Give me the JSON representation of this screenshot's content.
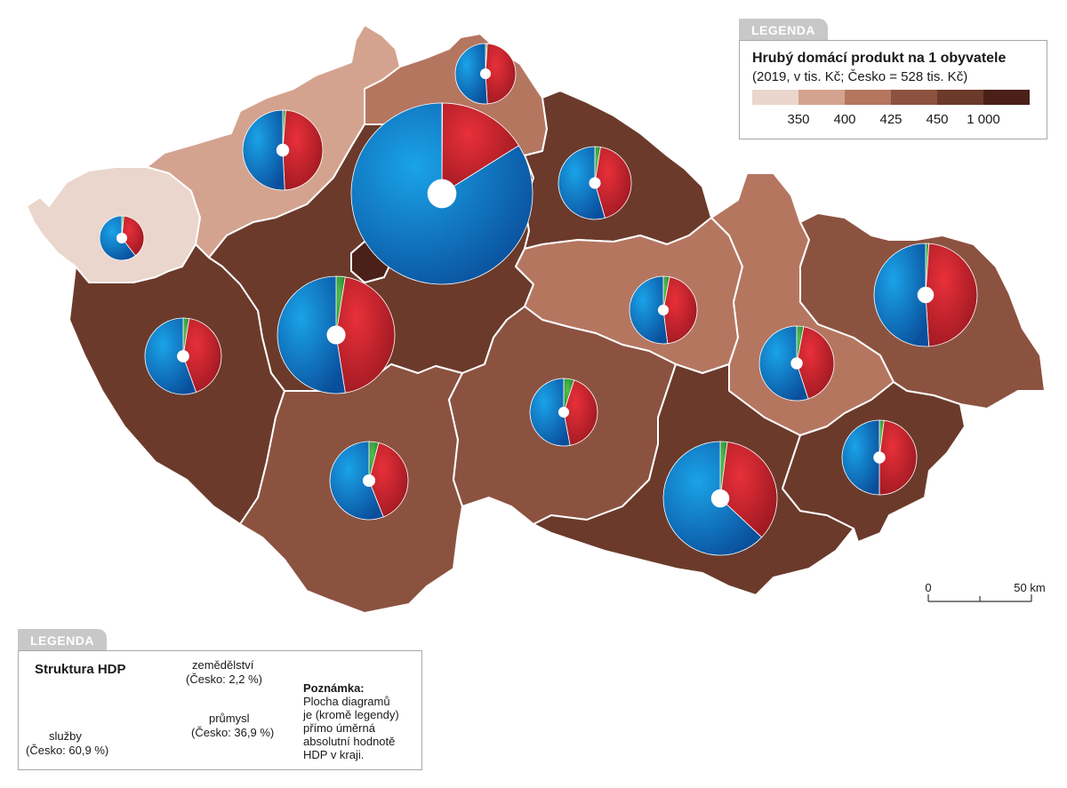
{
  "legend_top": {
    "tab": "LEGENDA",
    "title": "Hrubý domácí produkt na 1 obyvatele",
    "subtitle": "(2019, v tis. Kč; Česko = 528 tis. Kč)",
    "classes": [
      {
        "color": "#ead6cc"
      },
      {
        "color": "#d4a38f"
      },
      {
        "color": "#b57660"
      },
      {
        "color": "#8c5240"
      },
      {
        "color": "#6b3a2b"
      },
      {
        "color": "#4a2018"
      }
    ],
    "breaks": [
      "350",
      "400",
      "425",
      "450",
      "1 000"
    ]
  },
  "legend_bottom": {
    "tab": "LEGENDA",
    "title": "Struktura HDP",
    "agri_label": "zemědělství",
    "agri_value": "(Česko: 2,2 %)",
    "ind_label": "průmysl",
    "ind_value": "(Česko: 36,9 %)",
    "serv_label": "služby",
    "serv_value": "(Česko: 60,9 %)",
    "sample_shares": {
      "agriculture": 2.2,
      "industry": 36.9,
      "services": 60.9
    },
    "note_title": "Poznámka:",
    "note_lines": [
      "Plocha diagramů",
      "je (kromě legendy)",
      "přímo úměrná",
      "absolutní hodnotě",
      "HDP v kraji."
    ]
  },
  "scale": {
    "zero": "0",
    "end": "50 km"
  },
  "pie_colors": {
    "agriculture": "#2e9e44",
    "industry": "#c4202b",
    "services": "#0a68b4"
  },
  "regions": [
    {
      "name": "karlovarsky",
      "cls": 0,
      "shares": {
        "agriculture": 1.5,
        "industry": 38,
        "services": 60.5
      }
    },
    {
      "name": "ustecky",
      "cls": 1,
      "shares": {
        "agriculture": 1.2,
        "industry": 48,
        "services": 50.8
      }
    },
    {
      "name": "liberecky",
      "cls": 2,
      "shares": {
        "agriculture": 1,
        "industry": 48,
        "services": 51
      }
    },
    {
      "name": "praha",
      "cls": 5,
      "shares": {
        "agriculture": 0.1,
        "industry": 16,
        "services": 83.9
      }
    },
    {
      "name": "stredocesky",
      "cls": 4,
      "shares": {
        "agriculture": 2.5,
        "industry": 45,
        "services": 52.5
      }
    },
    {
      "name": "kralovehradecky",
      "cls": 4,
      "shares": {
        "agriculture": 2.5,
        "industry": 43,
        "services": 54.5
      }
    },
    {
      "name": "plzensky",
      "cls": 4,
      "shares": {
        "agriculture": 2.5,
        "industry": 42,
        "services": 55.5
      }
    },
    {
      "name": "pardubicky",
      "cls": 2,
      "shares": {
        "agriculture": 3,
        "industry": 45,
        "services": 52
      }
    },
    {
      "name": "olomoucky",
      "cls": 2,
      "shares": {
        "agriculture": 3,
        "industry": 42,
        "services": 55
      }
    },
    {
      "name": "moravskoslezsky",
      "cls": 3,
      "shares": {
        "agriculture": 1,
        "industry": 48,
        "services": 51
      }
    },
    {
      "name": "jihocesky",
      "cls": 3,
      "shares": {
        "agriculture": 4,
        "industry": 40,
        "services": 56
      }
    },
    {
      "name": "vysocina",
      "cls": 3,
      "shares": {
        "agriculture": 5,
        "industry": 42,
        "services": 53
      }
    },
    {
      "name": "jihomoravsky",
      "cls": 4,
      "shares": {
        "agriculture": 2,
        "industry": 35,
        "services": 63
      }
    },
    {
      "name": "zlinsky",
      "cls": 4,
      "shares": {
        "agriculture": 2,
        "industry": 48,
        "services": 50
      }
    }
  ]
}
